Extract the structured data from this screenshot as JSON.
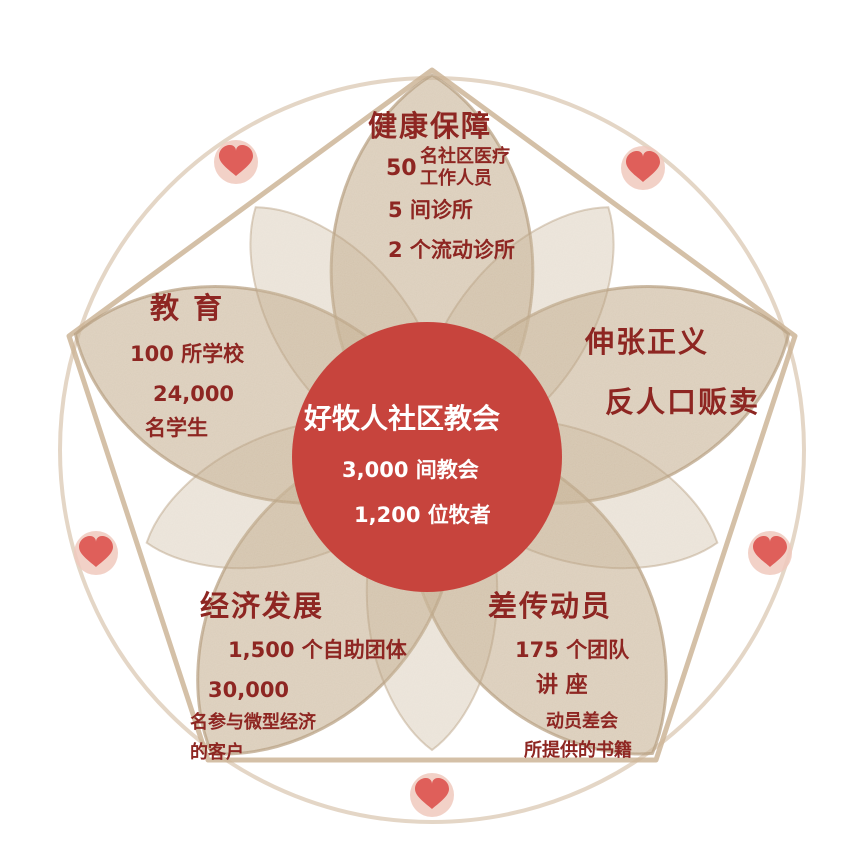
{
  "colors": {
    "petal_fill": "#cbb697",
    "petal_stroke": "#b89e7c",
    "ring": "#cdb598",
    "center_fill": "#c7443d",
    "heart": "#df5f5a",
    "heart_bg": "#f0c9bd",
    "text": "#8e2622",
    "center_text": "#ffffff"
  },
  "center": {
    "title": "好牧人社区教会",
    "stat1": "3,000 间教会",
    "stat2": "1,200 位牧者"
  },
  "health": {
    "title": "健康保障",
    "num1": "50",
    "line1a": "名社区医疗",
    "line1b": "工作人员",
    "line2": "5 间诊所",
    "line3": "2 个流动诊所"
  },
  "justice": {
    "line1": "伸张正义",
    "line2": "反人口贩卖"
  },
  "education": {
    "title": "教 育",
    "line1": "100 所学校",
    "line2": "24,000",
    "line3": "名学生"
  },
  "economy": {
    "title": "经济发展",
    "line1": "1,500 个自助团体",
    "line2": "30,000",
    "line3": "名参与微型经济",
    "line4": "的客户"
  },
  "mobilization": {
    "title": "差传动员",
    "line1": "175 个团队",
    "line2": "讲 座",
    "line3": "动员差会",
    "line4": "所提供的书籍"
  },
  "icons": [
    "heart-icon",
    "heart-icon",
    "heart-icon",
    "heart-icon",
    "heart-icon"
  ]
}
